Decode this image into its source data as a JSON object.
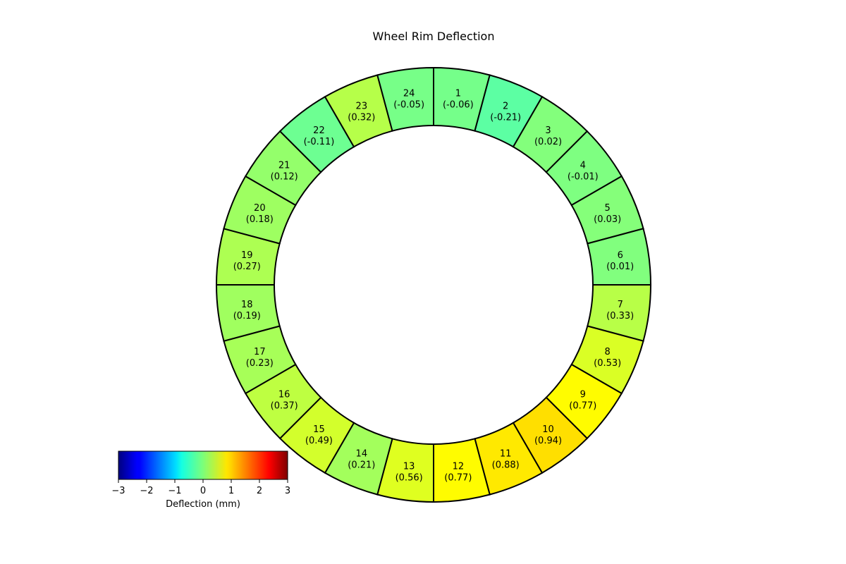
{
  "chart_data": {
    "type": "ring",
    "title": "Wheel Rim Deflection",
    "segments": [
      {
        "id": "1",
        "value": -0.06
      },
      {
        "id": "2",
        "value": -0.21
      },
      {
        "id": "3",
        "value": 0.02
      },
      {
        "id": "4",
        "value": -0.01
      },
      {
        "id": "5",
        "value": 0.03
      },
      {
        "id": "6",
        "value": 0.01
      },
      {
        "id": "7",
        "value": 0.33
      },
      {
        "id": "8",
        "value": 0.53
      },
      {
        "id": "9",
        "value": 0.77
      },
      {
        "id": "10",
        "value": 0.94
      },
      {
        "id": "11",
        "value": 0.88
      },
      {
        "id": "12",
        "value": 0.77
      },
      {
        "id": "13",
        "value": 0.56
      },
      {
        "id": "14",
        "value": 0.21
      },
      {
        "id": "15",
        "value": 0.49
      },
      {
        "id": "16",
        "value": 0.37
      },
      {
        "id": "17",
        "value": 0.23
      },
      {
        "id": "18",
        "value": 0.19
      },
      {
        "id": "19",
        "value": 0.27
      },
      {
        "id": "20",
        "value": 0.18
      },
      {
        "id": "21",
        "value": 0.12
      },
      {
        "id": "22",
        "value": -0.11
      },
      {
        "id": "23",
        "value": 0.32
      },
      {
        "id": "24",
        "value": -0.05
      }
    ],
    "segment_labels": [
      "(-0.06)",
      "(-0.21)",
      "(0.02)",
      "(-0.01)",
      "(0.03)",
      "(0.01)",
      "(0.33)",
      "(0.53)",
      "(0.77)",
      "(0.94)",
      "(0.88)",
      "(0.77)",
      "(0.56)",
      "(0.21)",
      "(0.49)",
      "(0.37)",
      "(0.23)",
      "(0.19)",
      "(0.27)",
      "(0.18)",
      "(0.12)",
      "(-0.11)",
      "(0.32)",
      "(-0.05)"
    ],
    "colormap": "jet",
    "colorbar": {
      "label": "Deflection (mm)",
      "range": [
        -3,
        3
      ],
      "ticks": [
        -3,
        -2,
        -1,
        0,
        1,
        2,
        3
      ],
      "tick_labels": [
        "−3",
        "−2",
        "−1",
        "0",
        "1",
        "2",
        "3"
      ],
      "placement": "bottom-left"
    }
  }
}
